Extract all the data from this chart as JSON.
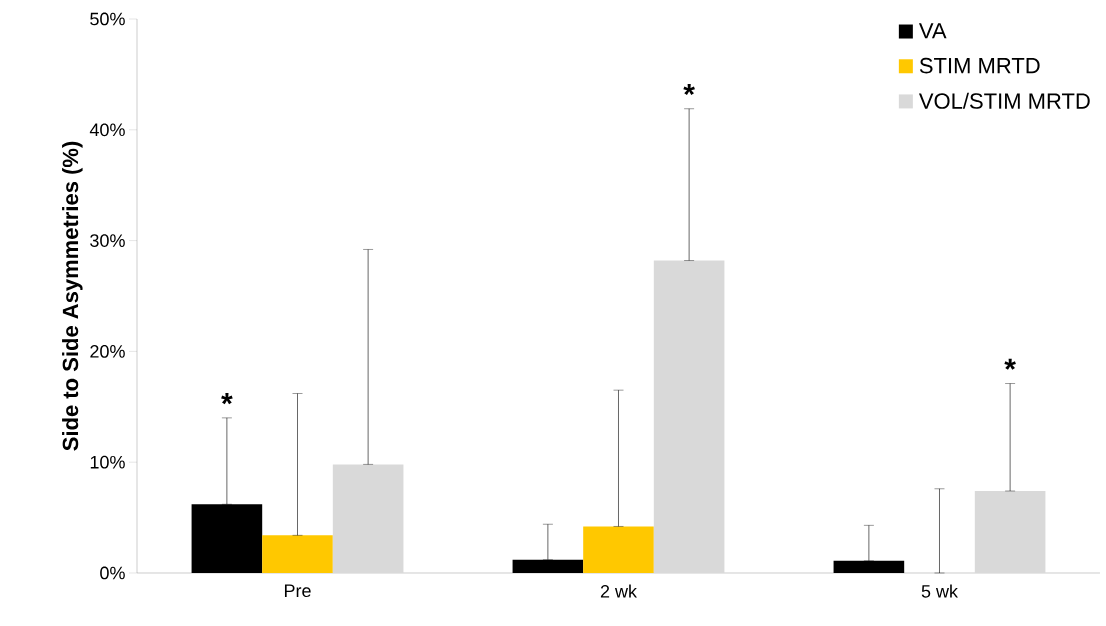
{
  "chart_data": {
    "type": "bar",
    "ylabel": "Side to Side Asymmetries (%)",
    "categories": [
      "Pre",
      "2 wk",
      "5 wk"
    ],
    "series": [
      {
        "name": "VA",
        "color": "#000000",
        "values": [
          6.2,
          1.2,
          1.1
        ],
        "errors": [
          [
            6.2,
            14.0
          ],
          [
            1.2,
            4.4
          ],
          [
            1.1,
            4.3
          ]
        ]
      },
      {
        "name": "STIM MRTD",
        "color": "#ffc800",
        "values": [
          3.4,
          4.2,
          0
        ],
        "errors": [
          [
            3.4,
            16.2
          ],
          [
            4.2,
            16.5
          ],
          [
            0,
            7.6
          ]
        ]
      },
      {
        "name": "VOL/STIM MRTD",
        "color": "#d9d9d9",
        "values": [
          9.8,
          28.2,
          7.4
        ],
        "errors": [
          [
            9.8,
            29.2
          ],
          [
            28.2,
            41.9
          ],
          [
            7.4,
            17.1
          ]
        ]
      }
    ],
    "ylim": [
      0,
      50
    ],
    "yticks": [
      {
        "value": 0,
        "label": "0%"
      },
      {
        "value": 10,
        "label": "10%"
      },
      {
        "value": 20,
        "label": "20%"
      },
      {
        "value": 30,
        "label": "30%"
      },
      {
        "value": 40,
        "label": "40%"
      },
      {
        "value": 50,
        "label": "50%"
      }
    ],
    "annotations": [
      "*",
      "*",
      "*"
    ],
    "grid": false,
    "legend": "top right"
  }
}
